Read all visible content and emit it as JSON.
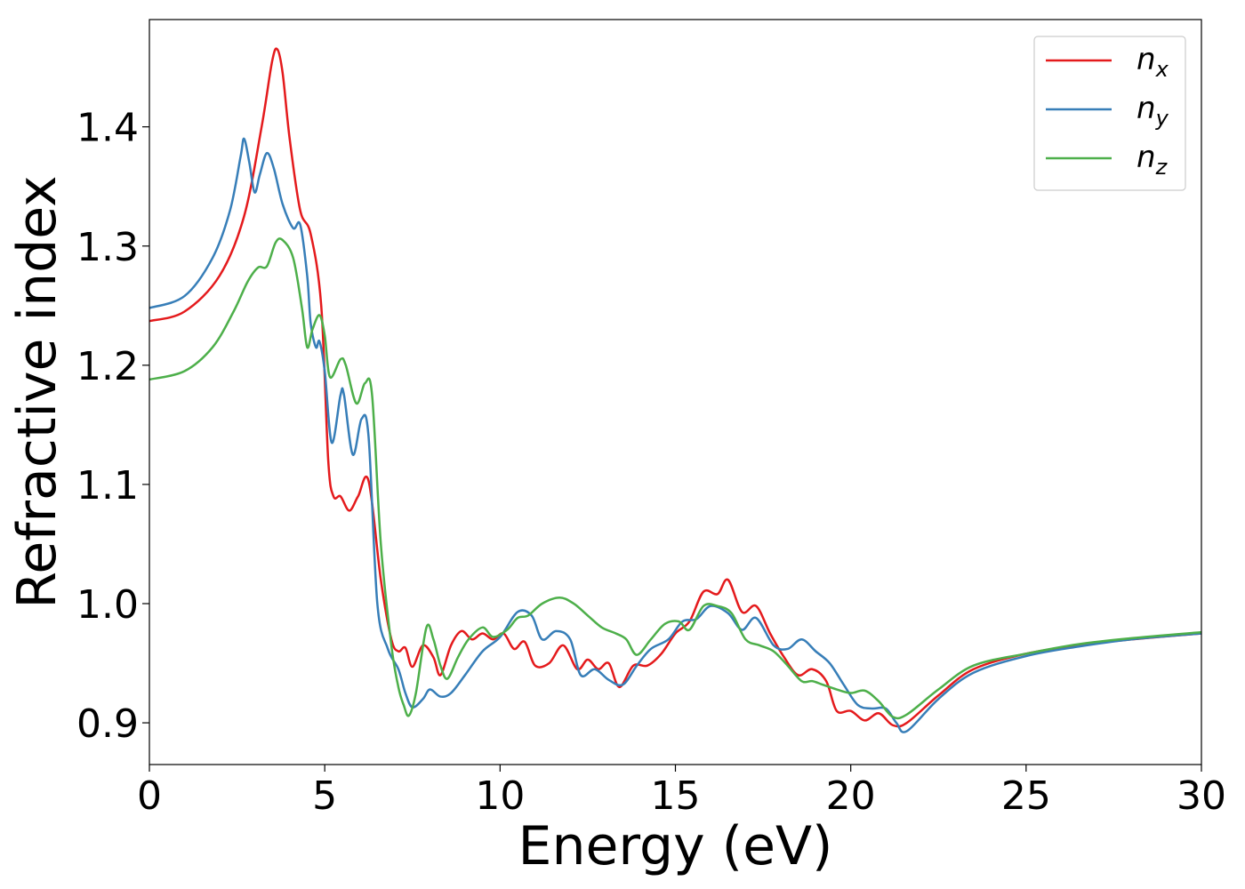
{
  "chart_data": {
    "type": "line",
    "xlabel": "Energy (eV)",
    "ylabel": "Refractive index",
    "xlim": [
      0,
      30
    ],
    "ylim": [
      0.865,
      1.49
    ],
    "xticks": [
      0,
      5,
      10,
      15,
      20,
      25,
      30
    ],
    "yticks": [
      0.9,
      1.0,
      1.1,
      1.2,
      1.3,
      1.4
    ],
    "xtick_labels": [
      "0",
      "5",
      "10",
      "15",
      "20",
      "25",
      "30"
    ],
    "ytick_labels": [
      "0.9",
      "1.0",
      "1.1",
      "1.2",
      "1.3",
      "1.4"
    ],
    "grid": false,
    "legend": "top-right",
    "series": [
      {
        "name": "n",
        "subscript": "x",
        "color": "#e41a1c",
        "points": [
          [
            0,
            1.237
          ],
          [
            1,
            1.245
          ],
          [
            2,
            1.275
          ],
          [
            2.7,
            1.325
          ],
          [
            3.2,
            1.4
          ],
          [
            3.5,
            1.455
          ],
          [
            3.65,
            1.465
          ],
          [
            3.8,
            1.445
          ],
          [
            4.0,
            1.39
          ],
          [
            4.3,
            1.33
          ],
          [
            4.6,
            1.31
          ],
          [
            4.9,
            1.25
          ],
          [
            5.1,
            1.12
          ],
          [
            5.25,
            1.09
          ],
          [
            5.45,
            1.09
          ],
          [
            5.7,
            1.078
          ],
          [
            5.95,
            1.09
          ],
          [
            6.25,
            1.103
          ],
          [
            6.6,
            1.02
          ],
          [
            6.9,
            0.97
          ],
          [
            7.1,
            0.96
          ],
          [
            7.3,
            0.963
          ],
          [
            7.5,
            0.947
          ],
          [
            7.8,
            0.965
          ],
          [
            8.1,
            0.955
          ],
          [
            8.3,
            0.94
          ],
          [
            8.6,
            0.965
          ],
          [
            8.9,
            0.977
          ],
          [
            9.2,
            0.97
          ],
          [
            9.5,
            0.975
          ],
          [
            9.8,
            0.97
          ],
          [
            10.1,
            0.975
          ],
          [
            10.4,
            0.962
          ],
          [
            10.7,
            0.968
          ],
          [
            11,
            0.948
          ],
          [
            11.4,
            0.95
          ],
          [
            11.8,
            0.965
          ],
          [
            12.2,
            0.945
          ],
          [
            12.5,
            0.953
          ],
          [
            12.8,
            0.945
          ],
          [
            13.1,
            0.95
          ],
          [
            13.4,
            0.93
          ],
          [
            13.8,
            0.948
          ],
          [
            14.2,
            0.948
          ],
          [
            14.6,
            0.958
          ],
          [
            15,
            0.975
          ],
          [
            15.4,
            0.985
          ],
          [
            15.8,
            1.01
          ],
          [
            16.2,
            1.008
          ],
          [
            16.5,
            1.02
          ],
          [
            16.9,
            0.993
          ],
          [
            17.3,
            0.998
          ],
          [
            17.7,
            0.975
          ],
          [
            18.1,
            0.955
          ],
          [
            18.5,
            0.94
          ],
          [
            18.9,
            0.945
          ],
          [
            19.3,
            0.935
          ],
          [
            19.6,
            0.91
          ],
          [
            20,
            0.91
          ],
          [
            20.4,
            0.902
          ],
          [
            20.8,
            0.908
          ],
          [
            21.2,
            0.898
          ],
          [
            21.6,
            0.9
          ],
          [
            22.5,
            0.923
          ],
          [
            23.5,
            0.945
          ],
          [
            25,
            0.958
          ],
          [
            26.5,
            0.965
          ],
          [
            28,
            0.97
          ],
          [
            30,
            0.975
          ]
        ]
      },
      {
        "name": "n",
        "subscript": "y",
        "color": "#377eb8",
        "points": [
          [
            0,
            1.248
          ],
          [
            1,
            1.258
          ],
          [
            1.8,
            1.29
          ],
          [
            2.3,
            1.33
          ],
          [
            2.6,
            1.375
          ],
          [
            2.7,
            1.39
          ],
          [
            2.85,
            1.37
          ],
          [
            3.0,
            1.345
          ],
          [
            3.15,
            1.36
          ],
          [
            3.35,
            1.378
          ],
          [
            3.55,
            1.365
          ],
          [
            3.8,
            1.335
          ],
          [
            4.1,
            1.315
          ],
          [
            4.3,
            1.318
          ],
          [
            4.5,
            1.275
          ],
          [
            4.6,
            1.235
          ],
          [
            4.75,
            1.215
          ],
          [
            4.85,
            1.22
          ],
          [
            5.0,
            1.195
          ],
          [
            5.2,
            1.135
          ],
          [
            5.45,
            1.175
          ],
          [
            5.55,
            1.175
          ],
          [
            5.8,
            1.125
          ],
          [
            6.05,
            1.155
          ],
          [
            6.25,
            1.14
          ],
          [
            6.5,
            1.0
          ],
          [
            6.8,
            0.962
          ],
          [
            7.1,
            0.945
          ],
          [
            7.3,
            0.925
          ],
          [
            7.5,
            0.913
          ],
          [
            7.8,
            0.92
          ],
          [
            8.0,
            0.928
          ],
          [
            8.3,
            0.922
          ],
          [
            8.6,
            0.925
          ],
          [
            9,
            0.94
          ],
          [
            9.5,
            0.96
          ],
          [
            10,
            0.972
          ],
          [
            10.5,
            0.993
          ],
          [
            10.9,
            0.99
          ],
          [
            11.2,
            0.97
          ],
          [
            11.6,
            0.977
          ],
          [
            12,
            0.97
          ],
          [
            12.3,
            0.94
          ],
          [
            12.7,
            0.945
          ],
          [
            13.1,
            0.936
          ],
          [
            13.5,
            0.932
          ],
          [
            13.9,
            0.948
          ],
          [
            14.3,
            0.962
          ],
          [
            14.8,
            0.97
          ],
          [
            15.2,
            0.985
          ],
          [
            15.6,
            0.987
          ],
          [
            16,
            0.998
          ],
          [
            16.5,
            0.992
          ],
          [
            16.9,
            0.978
          ],
          [
            17.3,
            0.988
          ],
          [
            17.8,
            0.965
          ],
          [
            18.2,
            0.962
          ],
          [
            18.6,
            0.97
          ],
          [
            19,
            0.96
          ],
          [
            19.4,
            0.95
          ],
          [
            19.8,
            0.932
          ],
          [
            20.2,
            0.915
          ],
          [
            20.6,
            0.912
          ],
          [
            21,
            0.912
          ],
          [
            21.3,
            0.9
          ],
          [
            21.6,
            0.893
          ],
          [
            22.5,
            0.92
          ],
          [
            23.5,
            0.942
          ],
          [
            25,
            0.956
          ],
          [
            26.5,
            0.964
          ],
          [
            28,
            0.97
          ],
          [
            30,
            0.975
          ]
        ]
      },
      {
        "name": "n",
        "subscript": "z",
        "color": "#4daf4a",
        "points": [
          [
            0,
            1.188
          ],
          [
            1,
            1.195
          ],
          [
            1.8,
            1.215
          ],
          [
            2.4,
            1.245
          ],
          [
            2.8,
            1.27
          ],
          [
            3.1,
            1.282
          ],
          [
            3.35,
            1.283
          ],
          [
            3.6,
            1.303
          ],
          [
            3.8,
            1.305
          ],
          [
            4.1,
            1.29
          ],
          [
            4.35,
            1.248
          ],
          [
            4.5,
            1.215
          ],
          [
            4.65,
            1.23
          ],
          [
            4.85,
            1.242
          ],
          [
            5.0,
            1.225
          ],
          [
            5.15,
            1.19
          ],
          [
            5.45,
            1.205
          ],
          [
            5.6,
            1.2
          ],
          [
            5.9,
            1.168
          ],
          [
            6.15,
            1.185
          ],
          [
            6.35,
            1.175
          ],
          [
            6.6,
            1.05
          ],
          [
            6.9,
            0.965
          ],
          [
            7.1,
            0.93
          ],
          [
            7.25,
            0.915
          ],
          [
            7.4,
            0.906
          ],
          [
            7.6,
            0.925
          ],
          [
            7.9,
            0.98
          ],
          [
            8.1,
            0.97
          ],
          [
            8.3,
            0.948
          ],
          [
            8.5,
            0.937
          ],
          [
            8.8,
            0.955
          ],
          [
            9.1,
            0.97
          ],
          [
            9.5,
            0.98
          ],
          [
            9.8,
            0.972
          ],
          [
            10.2,
            0.978
          ],
          [
            10.5,
            0.988
          ],
          [
            10.8,
            0.99
          ],
          [
            11.2,
            1.0
          ],
          [
            11.7,
            1.005
          ],
          [
            12.1,
            1.0
          ],
          [
            12.5,
            0.99
          ],
          [
            12.9,
            0.98
          ],
          [
            13.3,
            0.975
          ],
          [
            13.6,
            0.97
          ],
          [
            13.9,
            0.957
          ],
          [
            14.3,
            0.97
          ],
          [
            14.7,
            0.983
          ],
          [
            15.1,
            0.985
          ],
          [
            15.4,
            0.978
          ],
          [
            15.8,
            0.998
          ],
          [
            16.2,
            0.998
          ],
          [
            16.6,
            0.992
          ],
          [
            17,
            0.97
          ],
          [
            17.4,
            0.965
          ],
          [
            17.8,
            0.96
          ],
          [
            18.2,
            0.948
          ],
          [
            18.6,
            0.935
          ],
          [
            18.9,
            0.935
          ],
          [
            19.2,
            0.932
          ],
          [
            19.6,
            0.928
          ],
          [
            20,
            0.925
          ],
          [
            20.4,
            0.927
          ],
          [
            20.8,
            0.918
          ],
          [
            21.2,
            0.905
          ],
          [
            21.6,
            0.907
          ],
          [
            22.5,
            0.928
          ],
          [
            23.5,
            0.948
          ],
          [
            25,
            0.958
          ],
          [
            26.5,
            0.966
          ],
          [
            28,
            0.971
          ],
          [
            30,
            0.976
          ]
        ]
      }
    ]
  }
}
